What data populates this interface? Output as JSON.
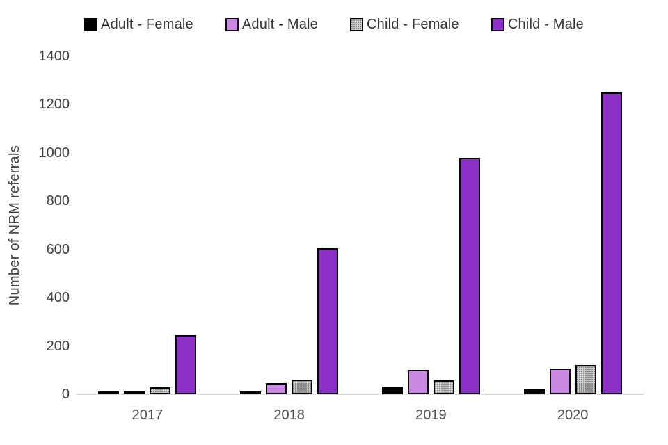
{
  "chart_data": {
    "type": "bar",
    "title": "",
    "ylabel": "Number of NRM referrals",
    "xlabel": "",
    "categories": [
      "2017",
      "2018",
      "2019",
      "2020"
    ],
    "series": [
      {
        "name": "Adult - Female",
        "color": "#000000",
        "style": "solid-black",
        "values": [
          5,
          12,
          33,
          21
        ]
      },
      {
        "name": "Adult - Male",
        "color": "#c987e3",
        "style": "fill",
        "values": [
          8,
          45,
          100,
          106
        ]
      },
      {
        "name": "Child - Female",
        "color": "#c9c9c9",
        "style": "pattern-dots",
        "values": [
          28,
          60,
          58,
          122
        ]
      },
      {
        "name": "Child - Male",
        "color": "#8b2fc7",
        "style": "fill",
        "values": [
          245,
          604,
          980,
          1250
        ]
      }
    ],
    "ylim": [
      0,
      1400
    ],
    "yticks": [
      0,
      200,
      400,
      600,
      800,
      1000,
      1200,
      1400
    ],
    "legend_position": "top",
    "grid": false,
    "axis_line_color": "#d9d9d9",
    "bar_border_color": "#000000"
  }
}
